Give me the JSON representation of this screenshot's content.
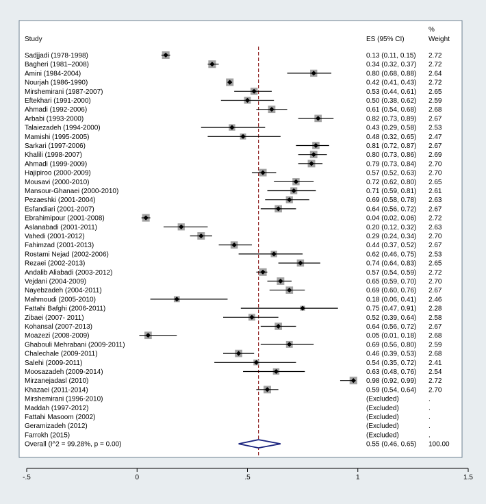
{
  "chart_data": {
    "type": "forest",
    "headers": {
      "study": "Study",
      "es": "ES (95% CI)",
      "weight_line1": "%",
      "weight_line2": "Weight"
    },
    "studies": [
      {
        "label": "Sadjjadi (1978-1998)",
        "es": 0.13,
        "lo": 0.11,
        "hi": 0.15,
        "es_text": "0.13 (0.11, 0.15)",
        "weight": "2.72"
      },
      {
        "label": "Bagheri (1981–2008)",
        "es": 0.34,
        "lo": 0.32,
        "hi": 0.37,
        "es_text": "0.34 (0.32, 0.37)",
        "weight": "2.72"
      },
      {
        "label": "Amini (1984-2004)",
        "es": 0.8,
        "lo": 0.68,
        "hi": 0.88,
        "es_text": "0.80 (0.68, 0.88)",
        "weight": "2.64"
      },
      {
        "label": "Nourjah (1986-1990)",
        "es": 0.42,
        "lo": 0.41,
        "hi": 0.43,
        "es_text": "0.42 (0.41, 0.43)",
        "weight": "2.72"
      },
      {
        "label": "Mirshemirani (1987-2007)",
        "es": 0.53,
        "lo": 0.44,
        "hi": 0.61,
        "es_text": "0.53 (0.44, 0.61)",
        "weight": "2.65"
      },
      {
        "label": "Eftekhari (1991-2000)",
        "es": 0.5,
        "lo": 0.38,
        "hi": 0.62,
        "es_text": "0.50 (0.38, 0.62)",
        "weight": "2.59"
      },
      {
        "label": "Ahmadi (1992-2006)",
        "es": 0.61,
        "lo": 0.54,
        "hi": 0.68,
        "es_text": "0.61 (0.54, 0.68)",
        "weight": "2.68"
      },
      {
        "label": "Arbabi (1993-2000)",
        "es": 0.82,
        "lo": 0.73,
        "hi": 0.89,
        "es_text": "0.82 (0.73, 0.89)",
        "weight": "2.67"
      },
      {
        "label": "Talaiezadeh (1994-2000)",
        "es": 0.43,
        "lo": 0.29,
        "hi": 0.58,
        "es_text": "0.43 (0.29, 0.58)",
        "weight": "2.53"
      },
      {
        "label": "Mamishi (1995-2005)",
        "es": 0.48,
        "lo": 0.32,
        "hi": 0.65,
        "es_text": "0.48 (0.32, 0.65)",
        "weight": "2.47"
      },
      {
        "label": "Sarkari (1997-2006)",
        "es": 0.81,
        "lo": 0.72,
        "hi": 0.87,
        "es_text": "0.81 (0.72, 0.87)",
        "weight": "2.67"
      },
      {
        "label": "Khalili (1998-2007)",
        "es": 0.8,
        "lo": 0.73,
        "hi": 0.86,
        "es_text": "0.80 (0.73, 0.86)",
        "weight": "2.69"
      },
      {
        "label": "Ahmadi (1999-2009)",
        "es": 0.79,
        "lo": 0.73,
        "hi": 0.84,
        "es_text": "0.79 (0.73, 0.84)",
        "weight": "2.70"
      },
      {
        "label": "Hajipiroo (2000-2009)",
        "es": 0.57,
        "lo": 0.52,
        "hi": 0.63,
        "es_text": "0.57 (0.52, 0.63)",
        "weight": "2.70"
      },
      {
        "label": "Mousavi (2000-2010)",
        "es": 0.72,
        "lo": 0.62,
        "hi": 0.8,
        "es_text": "0.72 (0.62, 0.80)",
        "weight": "2.65"
      },
      {
        "label": "Mansour-Ghanaei (2000-2010)",
        "es": 0.71,
        "lo": 0.59,
        "hi": 0.81,
        "es_text": "0.71 (0.59, 0.81)",
        "weight": "2.61"
      },
      {
        "label": "Pezaeshki (2001-2004)",
        "es": 0.69,
        "lo": 0.58,
        "hi": 0.78,
        "es_text": "0.69 (0.58, 0.78)",
        "weight": "2.63"
      },
      {
        "label": "Esfandiari (2001-2007)",
        "es": 0.64,
        "lo": 0.56,
        "hi": 0.72,
        "es_text": "0.64 (0.56, 0.72)",
        "weight": "2.67"
      },
      {
        "label": "Ebrahimipour (2001-2008)",
        "es": 0.04,
        "lo": 0.02,
        "hi": 0.06,
        "es_text": "0.04 (0.02, 0.06)",
        "weight": "2.72"
      },
      {
        "label": "Aslanabadi (2001-2011)",
        "es": 0.2,
        "lo": 0.12,
        "hi": 0.32,
        "es_text": "0.20 (0.12, 0.32)",
        "weight": "2.63"
      },
      {
        "label": "Vahedi (2001-2012)",
        "es": 0.29,
        "lo": 0.24,
        "hi": 0.34,
        "es_text": "0.29 (0.24, 0.34)",
        "weight": "2.70"
      },
      {
        "label": "Fahimzad (2001-2013)",
        "es": 0.44,
        "lo": 0.37,
        "hi": 0.52,
        "es_text": "0.44 (0.37, 0.52)",
        "weight": "2.67"
      },
      {
        "label": "Rostami Nejad (2002-2006)",
        "es": 0.62,
        "lo": 0.46,
        "hi": 0.75,
        "es_text": "0.62 (0.46, 0.75)",
        "weight": "2.53"
      },
      {
        "label": "Rezaei (2002-2013)",
        "es": 0.74,
        "lo": 0.64,
        "hi": 0.83,
        "es_text": "0.74 (0.64, 0.83)",
        "weight": "2.65"
      },
      {
        "label": "Andalib Aliabadi (2003-2012)",
        "es": 0.57,
        "lo": 0.54,
        "hi": 0.59,
        "es_text": "0.57 (0.54, 0.59)",
        "weight": "2.72"
      },
      {
        "label": "Vejdani (2004-2009)",
        "es": 0.65,
        "lo": 0.59,
        "hi": 0.7,
        "es_text": "0.65 (0.59, 0.70)",
        "weight": "2.70"
      },
      {
        "label": "Nayebzadeh (2004-2011)",
        "es": 0.69,
        "lo": 0.6,
        "hi": 0.76,
        "es_text": "0.69 (0.60, 0.76)",
        "weight": "2.67"
      },
      {
        "label": "Mahmoudi (2005-2010)",
        "es": 0.18,
        "lo": 0.06,
        "hi": 0.41,
        "es_text": "0.18 (0.06, 0.41)",
        "weight": "2.46"
      },
      {
        "label": "Fattahi Bafghi (2006-2011)",
        "es": 0.75,
        "lo": 0.47,
        "hi": 0.91,
        "es_text": "0.75 (0.47, 0.91)",
        "weight": "2.28"
      },
      {
        "label": "Zibaei (2007- 2011)",
        "es": 0.52,
        "lo": 0.39,
        "hi": 0.64,
        "es_text": "0.52 (0.39, 0.64)",
        "weight": "2.58"
      },
      {
        "label": "Kohansal (2007-2013)",
        "es": 0.64,
        "lo": 0.56,
        "hi": 0.72,
        "es_text": "0.64 (0.56, 0.72)",
        "weight": "2.67"
      },
      {
        "label": "Moazezi (2008-2009)",
        "es": 0.05,
        "lo": 0.01,
        "hi": 0.18,
        "es_text": "0.05 (0.01, 0.18)",
        "weight": "2.68"
      },
      {
        "label": "Ghabouli Mehrabani (2009-2011)",
        "es": 0.69,
        "lo": 0.56,
        "hi": 0.8,
        "es_text": "0.69 (0.56, 0.80)",
        "weight": "2.59"
      },
      {
        "label": "Chalechale (2009-2011)",
        "es": 0.46,
        "lo": 0.39,
        "hi": 0.53,
        "es_text": "0.46 (0.39, 0.53)",
        "weight": "2.68"
      },
      {
        "label": "Salehi (2009-2011)",
        "es": 0.54,
        "lo": 0.35,
        "hi": 0.72,
        "es_text": "0.54 (0.35, 0.72)",
        "weight": "2.41"
      },
      {
        "label": "Moosazadeh (2009-2014)",
        "es": 0.63,
        "lo": 0.48,
        "hi": 0.76,
        "es_text": "0.63 (0.48, 0.76)",
        "weight": "2.54"
      },
      {
        "label": "Mirzanejadasl (2010)",
        "es": 0.98,
        "lo": 0.92,
        "hi": 0.99,
        "es_text": "0.98 (0.92, 0.99)",
        "weight": "2.72"
      },
      {
        "label": "Khazaei (2011-2014)",
        "es": 0.59,
        "lo": 0.54,
        "hi": 0.64,
        "es_text": "0.59 (0.54, 0.64)",
        "weight": "2.70"
      },
      {
        "label": "Mirshemirani (1996-2010)",
        "es": null,
        "lo": null,
        "hi": null,
        "es_text": "(Excluded)",
        "weight": "."
      },
      {
        "label": "Maddah (1997-2012)",
        "es": null,
        "lo": null,
        "hi": null,
        "es_text": "(Excluded)",
        "weight": "."
      },
      {
        "label": "Fattahi Masoom (2002)",
        "es": null,
        "lo": null,
        "hi": null,
        "es_text": "(Excluded)",
        "weight": "."
      },
      {
        "label": "Geramizadeh (2012)",
        "es": null,
        "lo": null,
        "hi": null,
        "es_text": "(Excluded)",
        "weight": "."
      },
      {
        "label": "Farrokh (2015)",
        "es": null,
        "lo": null,
        "hi": null,
        "es_text": "(Excluded)",
        "weight": "."
      }
    ],
    "overall": {
      "label": "Overall  (I^2 = 99.28%, p = 0.00)",
      "es": 0.55,
      "lo": 0.46,
      "hi": 0.65,
      "es_text": "0.55 (0.46, 0.65)",
      "weight": "100.00"
    },
    "xlim": [
      -0.5,
      1.5
    ],
    "ticks": [
      -0.5,
      0,
      0.5,
      1,
      1.5
    ],
    "tick_labels": [
      "-.5",
      "0",
      ".5",
      "1",
      "1.5"
    ],
    "colors": {
      "background": "#e8edf0",
      "panel": "#ffffff",
      "border": "#6b7f8f",
      "ci_line": "#000000",
      "weight_box": "#a3a3a3",
      "point": "#000000",
      "reference_line": "#8b1a1a",
      "overall_diamond": "#1a237e"
    }
  }
}
